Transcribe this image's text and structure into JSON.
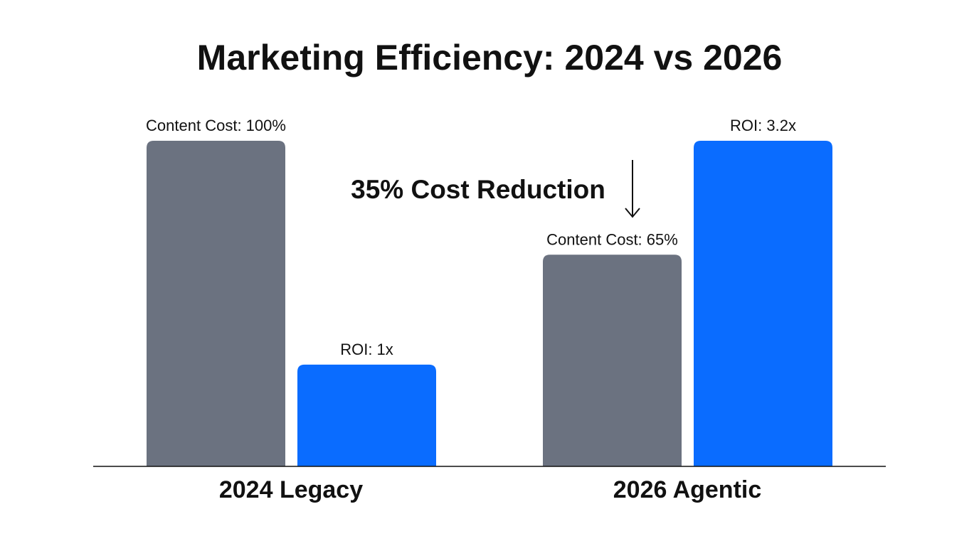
{
  "chart_data": {
    "type": "bar",
    "title": "Marketing Efficiency: 2024 vs 2026",
    "categories": [
      "2024 Legacy",
      "2026 Agentic"
    ],
    "series": [
      {
        "metric": "Content Cost",
        "unit": "%",
        "values": [
          100,
          65
        ],
        "labels": [
          "Content Cost: 100%",
          "Content Cost: 65%"
        ],
        "color": "#6b7280"
      },
      {
        "metric": "ROI",
        "unit": "x",
        "values": [
          1,
          3.2
        ],
        "labels": [
          "ROI: 1x",
          "ROI: 3.2x"
        ],
        "color": "#0a6cff"
      }
    ],
    "annotation": {
      "text": "35% Cost Reduction",
      "arrow": "down",
      "target": "Content Cost: 65%"
    },
    "xlabel": "",
    "ylabel": "",
    "grid": false,
    "legend": "none",
    "y_axis_shown": false
  }
}
